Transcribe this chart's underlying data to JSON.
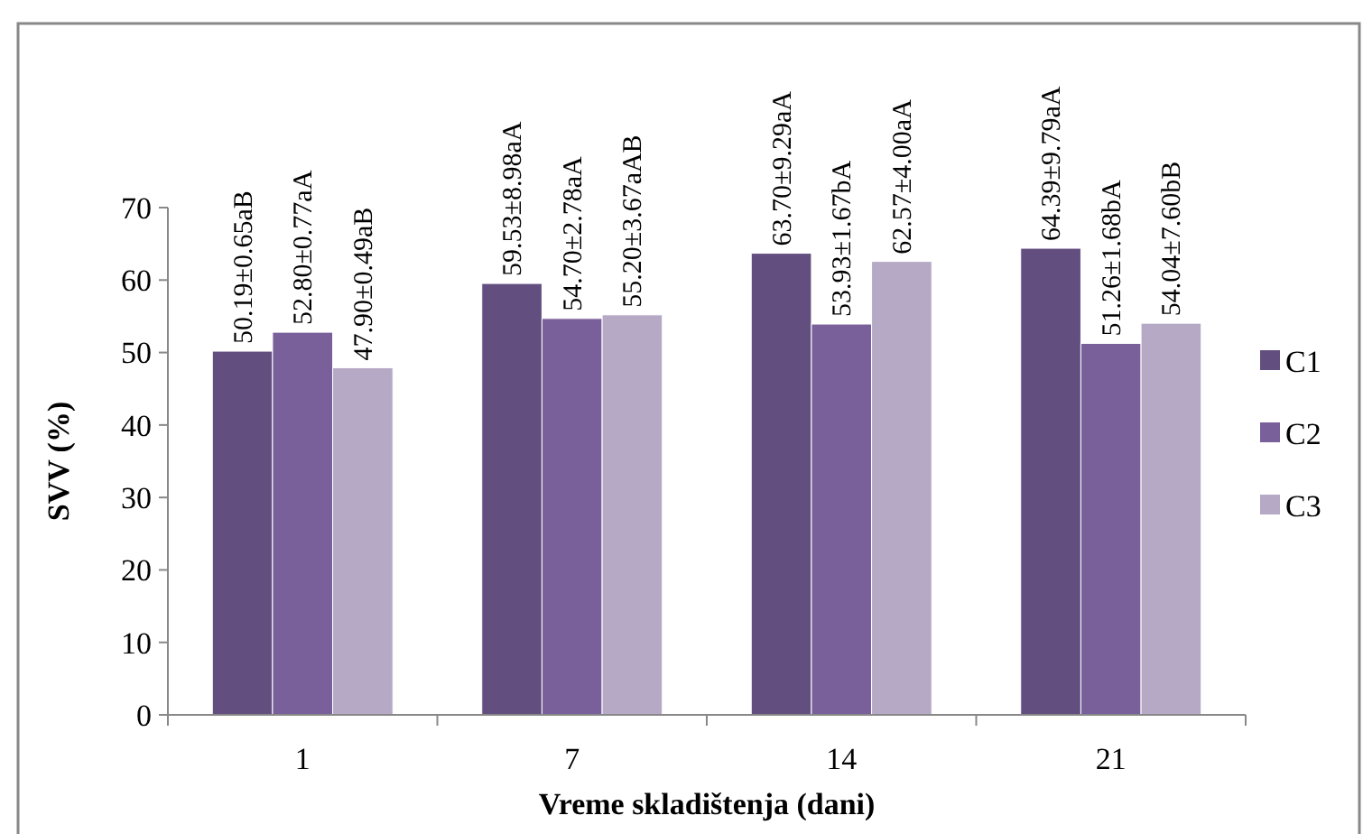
{
  "chart_data": {
    "type": "bar",
    "xlabel": "Vreme skladištenja (dani)",
    "ylabel": "SVV (%)",
    "categories": [
      "1",
      "7",
      "14",
      "21"
    ],
    "series": [
      {
        "name": "C1",
        "color": "#634e80",
        "values": [
          50.19,
          59.53,
          63.7,
          64.39
        ],
        "value_labels": [
          "50.19±0.65aB",
          "59.53±8.98aA",
          "63.70±9.29aA",
          "64.39±9.79aA"
        ]
      },
      {
        "name": "C2",
        "color": "#7a609a",
        "values": [
          52.8,
          54.7,
          53.93,
          51.26
        ],
        "value_labels": [
          "52.80±0.77aA",
          "54.70±2.78aA",
          "53.93±1.67bA",
          "51.26±1.68bA"
        ]
      },
      {
        "name": "C3",
        "color": "#b5a9c6",
        "values": [
          47.9,
          55.2,
          62.57,
          54.04
        ],
        "value_labels": [
          "47.90±0.49aB",
          "55.20±3.67aAB",
          "62.57±4.00aA",
          "54.04±7.60bB"
        ]
      }
    ],
    "ylim": [
      0,
      70
    ],
    "yticks": [
      0,
      10,
      20,
      30,
      40,
      50,
      60,
      70
    ],
    "grid": false,
    "legend": "right"
  }
}
